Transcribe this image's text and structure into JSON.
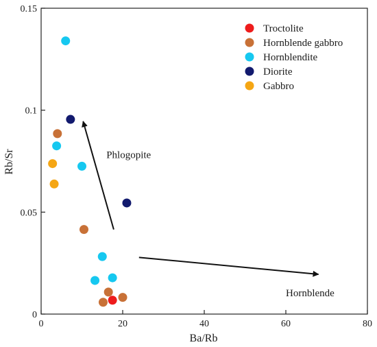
{
  "chart_data": {
    "type": "scatter",
    "xlabel": "Ba/Rb",
    "ylabel": "Rb/Sr",
    "xlim": [
      0,
      80
    ],
    "ylim": [
      0,
      0.15
    ],
    "x_ticks": [
      "0",
      "20",
      "40",
      "60",
      "80"
    ],
    "y_ticks": [
      "0",
      "0.05",
      "0.1",
      "0.15"
    ],
    "grid": false,
    "legend_position": "top-right",
    "series": [
      {
        "name": "Troctolite",
        "color": "#ee1c1c",
        "points": [
          {
            "x": 17.5,
            "y": 0.0068
          }
        ]
      },
      {
        "name": "Hornblende gabbro",
        "color": "#c87137",
        "points": [
          {
            "x": 4.0,
            "y": 0.0885
          },
          {
            "x": 10.5,
            "y": 0.0415
          },
          {
            "x": 16.5,
            "y": 0.0108
          },
          {
            "x": 15.2,
            "y": 0.0058
          },
          {
            "x": 20.0,
            "y": 0.0082
          }
        ]
      },
      {
        "name": "Hornblendite",
        "color": "#16c8f0",
        "points": [
          {
            "x": 6.0,
            "y": 0.134
          },
          {
            "x": 3.8,
            "y": 0.0825
          },
          {
            "x": 10.0,
            "y": 0.0725
          },
          {
            "x": 15.0,
            "y": 0.0282
          },
          {
            "x": 13.2,
            "y": 0.0165
          },
          {
            "x": 17.5,
            "y": 0.0178
          }
        ]
      },
      {
        "name": "Diorite",
        "color": "#121a6e",
        "points": [
          {
            "x": 7.2,
            "y": 0.0955
          },
          {
            "x": 21.0,
            "y": 0.0545
          }
        ]
      },
      {
        "name": "Gabbro",
        "color": "#f5a614",
        "points": [
          {
            "x": 2.8,
            "y": 0.0738
          },
          {
            "x": 3.2,
            "y": 0.0638
          }
        ]
      }
    ],
    "annotations": [
      {
        "label": "Phlogopite",
        "text_x": 16,
        "text_y": 0.0765,
        "arrow": {
          "from": [
            17.8,
            0.0415
          ],
          "to": [
            10.3,
            0.0945
          ]
        }
      },
      {
        "label": "Hornblende",
        "text_x": 60,
        "text_y": 0.0088,
        "arrow": {
          "from": [
            24,
            0.0278
          ],
          "to": [
            68,
            0.0195
          ]
        }
      }
    ]
  }
}
